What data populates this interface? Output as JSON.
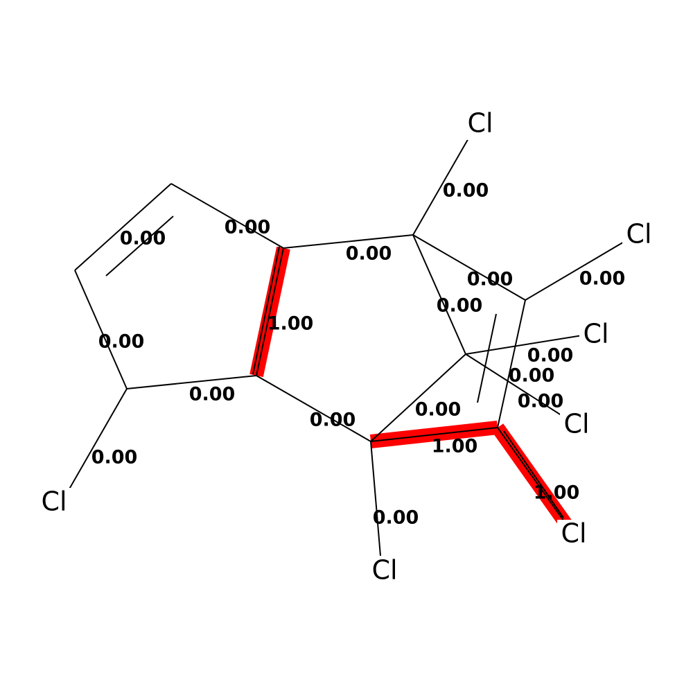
{
  "diagram": {
    "type": "molecule-bond-weights",
    "highlight_color": "#ff0000",
    "atoms": [
      {
        "id": "C1",
        "element": "C",
        "label": ""
      },
      {
        "id": "C2",
        "element": "C",
        "label": ""
      },
      {
        "id": "C3",
        "element": "C",
        "label": ""
      },
      {
        "id": "C4",
        "element": "C",
        "label": ""
      },
      {
        "id": "C5",
        "element": "C",
        "label": ""
      },
      {
        "id": "C6",
        "element": "C",
        "label": ""
      },
      {
        "id": "C7",
        "element": "C",
        "label": ""
      },
      {
        "id": "C8",
        "element": "C",
        "label": ""
      },
      {
        "id": "C9",
        "element": "C",
        "label": ""
      },
      {
        "id": "C10",
        "element": "C",
        "label": ""
      },
      {
        "id": "Cl1",
        "element": "Cl",
        "label": "Cl"
      },
      {
        "id": "Cl2",
        "element": "Cl",
        "label": "Cl"
      },
      {
        "id": "Cl3",
        "element": "Cl",
        "label": "Cl"
      },
      {
        "id": "Cl4",
        "element": "Cl",
        "label": "Cl"
      },
      {
        "id": "Cl5",
        "element": "Cl",
        "label": "Cl"
      },
      {
        "id": "Cl6",
        "element": "Cl",
        "label": "Cl"
      },
      {
        "id": "Cl7",
        "element": "Cl",
        "label": "Cl"
      }
    ],
    "bonds": [
      {
        "a": "C1",
        "b": "C2",
        "order": 2,
        "weight_label": "0.00",
        "weight": 0.0
      },
      {
        "a": "C2",
        "b": "C3",
        "order": 1,
        "weight_label": "0.00",
        "weight": 0.0
      },
      {
        "a": "C3",
        "b": "C4",
        "order": 1,
        "weight_label": "0.00",
        "weight": 0.0
      },
      {
        "a": "C4",
        "b": "Cl1",
        "order": 1,
        "weight_label": "0.00",
        "weight": 0.0
      },
      {
        "a": "C4",
        "b": "C5",
        "order": 1,
        "weight_label": "0.00",
        "weight": 0.0
      },
      {
        "a": "C5",
        "b": "C6",
        "order": 2,
        "weight_label": "1.00",
        "weight": 1.0
      },
      {
        "a": "C6",
        "b": "C1",
        "order": 1,
        "weight_label": "0.00",
        "weight": 0.0
      },
      {
        "a": "C6",
        "b": "C7",
        "order": 1,
        "weight_label": "0.00",
        "weight": 0.0
      },
      {
        "a": "C7",
        "b": "Cl2",
        "order": 1,
        "weight_label": "0.00",
        "weight": 0.0
      },
      {
        "a": "C7",
        "b": "C8",
        "order": 1,
        "weight_label": "0.00",
        "weight": 0.0
      },
      {
        "a": "C8",
        "b": "Cl3",
        "order": 1,
        "weight_label": "0.00",
        "weight": 0.0
      },
      {
        "a": "C8",
        "b": "C9",
        "order": 2,
        "weight_label": "0.00",
        "weight": 0.0
      },
      {
        "a": "C9",
        "b": "Cl4",
        "order": 1,
        "weight_label": "0.00",
        "weight": 0.0
      },
      {
        "a": "C9",
        "b": "C10",
        "order": 1,
        "weight_label": "0.00",
        "weight": 0.0
      },
      {
        "a": "C10",
        "b": "Cl5",
        "order": 1,
        "weight_label": "0.00",
        "weight": 0.0
      },
      {
        "a": "C10",
        "b": "Cl6",
        "order": 1,
        "weight_label": "0.00",
        "weight": 0.0
      },
      {
        "a": "C7",
        "b": "C10",
        "order": 1,
        "weight_label": "0.00",
        "weight": 0.0
      },
      {
        "a": "C5",
        "b": "C11",
        "order": 1,
        "weight_label": "0.00",
        "weight": 0.0
      },
      {
        "a": "C11",
        "b": "C12",
        "order": 1,
        "weight_label": "1.00",
        "weight": 1.0
      },
      {
        "a": "C12",
        "b": "Cl7",
        "order": 1,
        "weight_label": "1.00",
        "weight": 1.0
      },
      {
        "a": "C11",
        "b": "Cl8",
        "order": 1,
        "weight_label": "0.00",
        "weight": 0.0
      },
      {
        "a": "C11",
        "b": "C10",
        "order": 1,
        "weight_label": "0.00",
        "weight": 0.0
      },
      {
        "a": "C12",
        "b": "C8",
        "order": 1,
        "weight_label": "0.00",
        "weight": 0.0
      }
    ]
  }
}
